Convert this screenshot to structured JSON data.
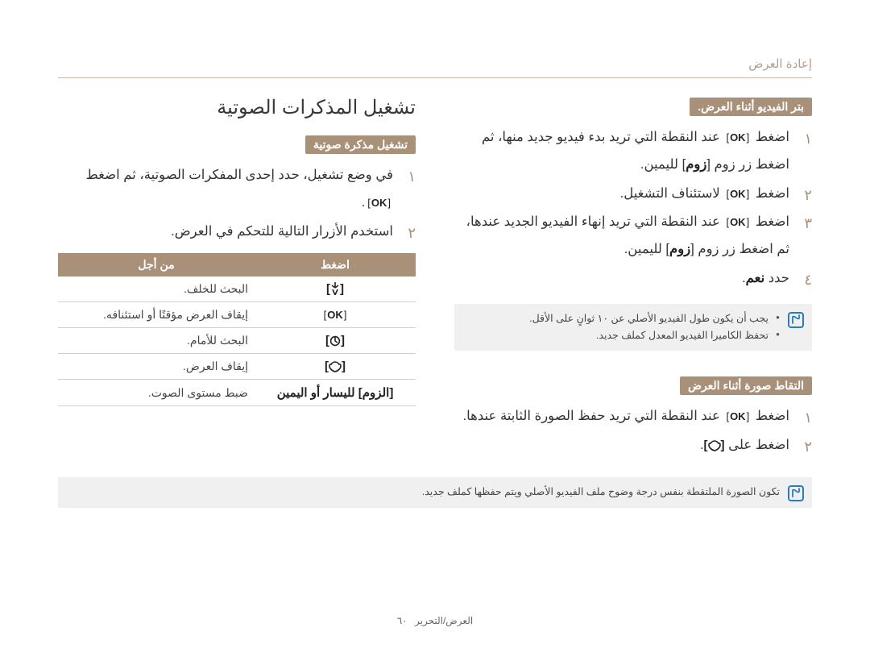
{
  "header": {
    "category": "إعادة العرض"
  },
  "footer": {
    "section": "العرض/التحرير",
    "page": "٦٠"
  },
  "rightCol": {
    "trim": {
      "heading": "بتر الفيديو أثناء العرض.",
      "steps": [
        {
          "n": "١",
          "html": "اضغط <span class='ok-box'>OK</span> عند النقطة التي تريد بدء فيديو جديد منها، ثم اضغط زر زوم [<span class='bold'>زوم</span>] لليمين."
        },
        {
          "n": "٢",
          "html": "اضغط <span class='ok-box'>OK</span> لاستئناف التشغيل."
        },
        {
          "n": "٣",
          "html": "اضغط <span class='ok-box'>OK</span> عند النقطة التي تريد إنهاء الفيديو الجديد عندها، ثم اضغط زر زوم [<span class='bold'>زوم</span>] لليمين."
        },
        {
          "n": "٤",
          "html": "حدد <span class='bold'>نعم</span>."
        }
      ],
      "notes": [
        "يجب أن يكون طول الفيديو الأصلي عن ١٠ ثوانٍ على الأقل.",
        "تحفظ الكاميرا الفيديو المعدل كملف جديد."
      ]
    },
    "capture": {
      "heading": "التقاط صورة أثناء العرض",
      "steps": [
        {
          "n": "١",
          "html": "اضغط <span class='ok-box'>OK</span> عند النقطة التي تريد حفظ الصورة الثابتة عندها."
        },
        {
          "n": "٢",
          "html": "اضغط على <span class='sym'>[<svg class='icon-inline' width='16' height='14' viewBox='0 0 16 14'><path d='M8 1 C5 1 3 4 3 4 C3 4 1 3 1 6 C1 9 4 12 8 13 C12 12 15 9 15 6 C15 3 13 4 13 4 C13 4 11 1 8 1 Z' fill='none' stroke='#222' stroke-width='1.6'/></svg>]</span>."
        }
      ],
      "wideNote": "تكون الصورة الملتقطة بنفس درجة وضوح ملف الفيديو الأصلي ويتم حفظها كملف جديد."
    }
  },
  "leftCol": {
    "mainHeading": "تشغيل المذكرات الصوتية",
    "subHeading": "تشغيل مذكرة صوتية",
    "steps": [
      {
        "n": "١",
        "html": "في وضع تشغيل، حدد إحدى المفكرات الصوتية، ثم اضغط <span class='ok-box'>OK</span>."
      },
      {
        "n": "٢",
        "html": "استخدم الأزرار التالية للتحكم في العرض."
      }
    ],
    "table": {
      "head": {
        "c1": "اضغط",
        "c2": "من أجل"
      },
      "rows": [
        {
          "btnHTML": "[<svg class='icon-inline' width='12' height='16' viewBox='0 0 12 16'><path d='M6 0 L6 7 M6 7 L2 4 M6 7 L10 4 M3 9 L6 16 L9 9' stroke='#222' stroke-width='1.6' fill='none'/></svg>]",
          "desc": "البحث للخلف."
        },
        {
          "btnHTML": "<span class='ok-box'>OK</span>",
          "desc": "إيقاف العرض مؤقتًا أو استئنافه."
        },
        {
          "btnHTML": "[<svg class='icon-inline' width='14' height='14' viewBox='0 0 14 14'><circle cx='7' cy='7' r='5.4' fill='none' stroke='#222' stroke-width='1.6'/><path d='M7 2.2 L7 7 L10 9' stroke='#222' stroke-width='1.6' fill='none'/></svg>]",
          "desc": "البحث للأمام."
        },
        {
          "btnHTML": "[<svg class='icon-inline' width='16' height='14' viewBox='0 0 16 14'><path d='M8 1 C5 1 3 4 3 4 C3 4 1 3 1 6 C1 9 4 12 8 13 C12 12 15 9 15 6 C15 3 13 4 13 4 C13 4 11 1 8 1 Z' fill='none' stroke='#222' stroke-width='1.6'/></svg>]",
          "desc": "إيقاف العرض."
        },
        {
          "btnHTML": "[<span style='font-weight:700'>الزوم</span>] لليسار أو اليمين",
          "desc": "ضبط مستوى الصوت."
        }
      ]
    }
  }
}
